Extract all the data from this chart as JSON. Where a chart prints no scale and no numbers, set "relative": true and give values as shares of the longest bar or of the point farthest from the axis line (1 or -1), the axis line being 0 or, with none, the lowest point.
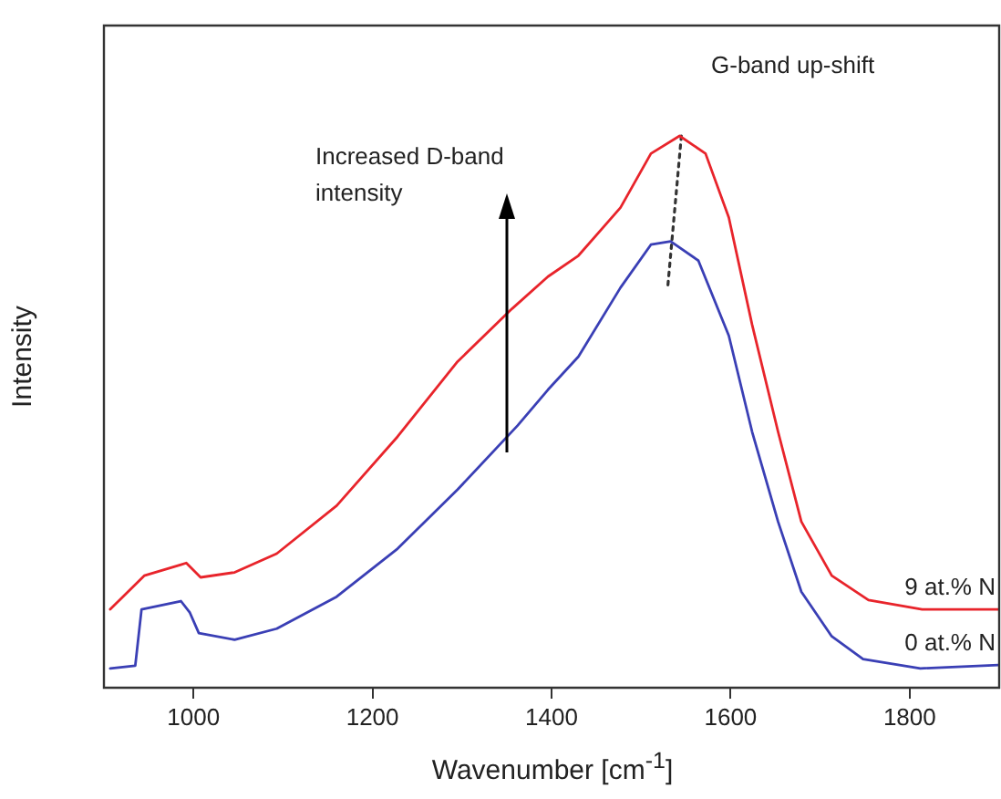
{
  "chart_data": {
    "type": "line",
    "relative": true,
    "xlabel": "Wavenumber [cm$^{-1}$]",
    "ylabel": "Intensity",
    "xlim": [
      900,
      1900
    ],
    "xticks": [
      1000,
      1200,
      1400,
      1600,
      1800
    ],
    "legend": false,
    "marker": "none",
    "annotations": [
      "Increased D-band intensity",
      "G-band up-shift"
    ],
    "series": [
      {
        "name": "9 at.% N",
        "color": "#e8242b",
        "x": [
          907,
          945,
          986,
          992,
          1008,
          1046,
          1093,
          1160,
          1228,
          1295,
          1356,
          1396,
          1430,
          1477,
          1511,
          1543,
          1572,
          1598,
          1624,
          1653,
          1679,
          1713,
          1754,
          1814,
          1899
        ],
        "values": [
          0.142,
          0.203,
          0.223,
          0.226,
          0.2,
          0.209,
          0.243,
          0.33,
          0.455,
          0.591,
          0.687,
          0.745,
          0.783,
          0.87,
          0.968,
          1.0,
          0.968,
          0.852,
          0.658,
          0.464,
          0.301,
          0.203,
          0.159,
          0.142,
          0.142
        ]
      },
      {
        "name": "0 at.% N",
        "color": "#3a3fb5",
        "x": [
          907,
          935,
          942,
          986,
          996,
          1006,
          1046,
          1093,
          1160,
          1228,
          1295,
          1362,
          1396,
          1430,
          1477,
          1511,
          1533,
          1564,
          1598,
          1624,
          1653,
          1679,
          1713,
          1748,
          1812,
          1899
        ],
        "values": [
          0.035,
          0.04,
          0.142,
          0.157,
          0.136,
          0.099,
          0.087,
          0.107,
          0.165,
          0.252,
          0.359,
          0.475,
          0.54,
          0.6,
          0.725,
          0.803,
          0.809,
          0.774,
          0.638,
          0.464,
          0.301,
          0.174,
          0.093,
          0.052,
          0.035,
          0.041
        ]
      },
      {
        "type": "line",
        "line_style": "dotted",
        "color": "#333333",
        "x": [
          1545,
          1530
        ],
        "values": [
          1.0,
          0.73
        ]
      }
    ]
  }
}
